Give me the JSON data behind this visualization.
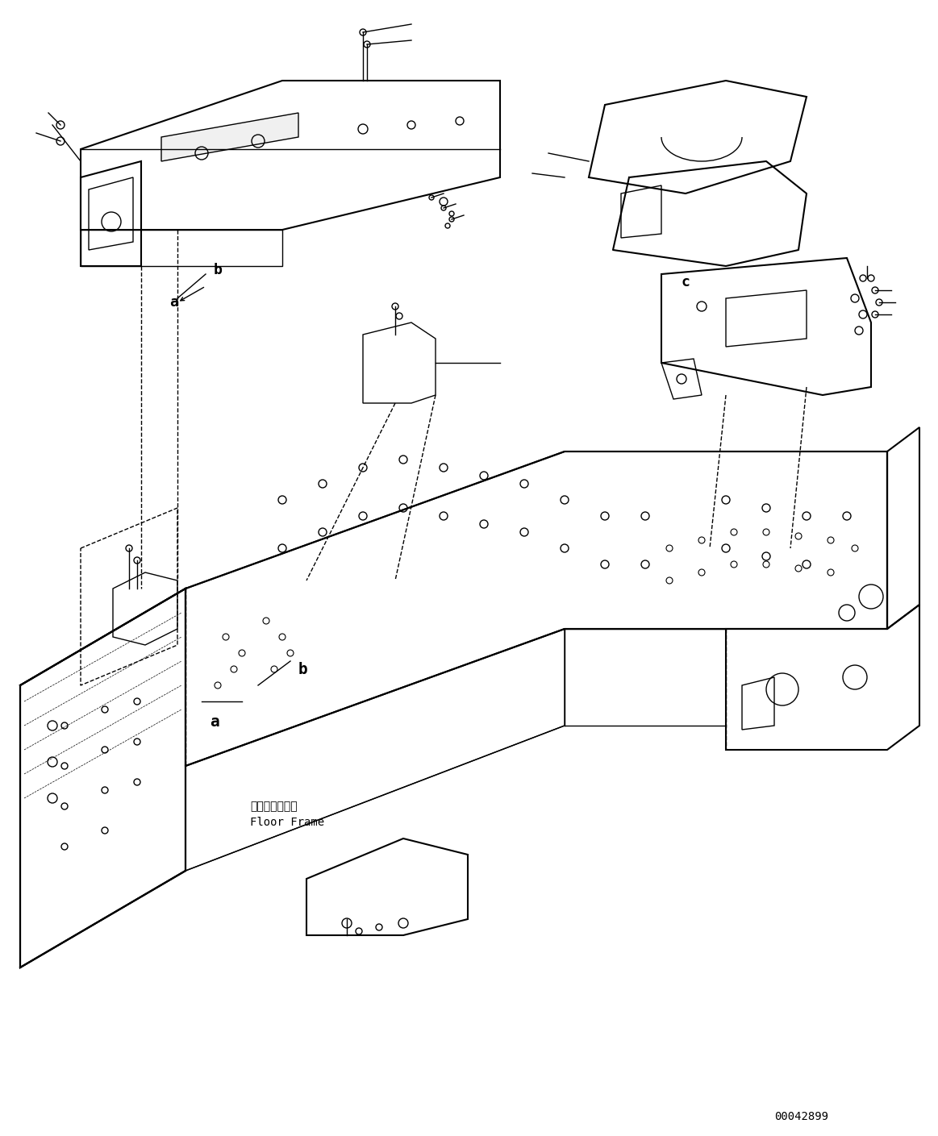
{
  "figure_width": 11.63,
  "figure_height": 14.09,
  "dpi": 100,
  "background_color": "#ffffff",
  "line_color": "#000000",
  "part_number": "00042899",
  "floor_frame_label_jp": "フロアフレーム",
  "floor_frame_label_en": "Floor Frame",
  "label_a": "a",
  "label_b": "b",
  "label_c": "c"
}
